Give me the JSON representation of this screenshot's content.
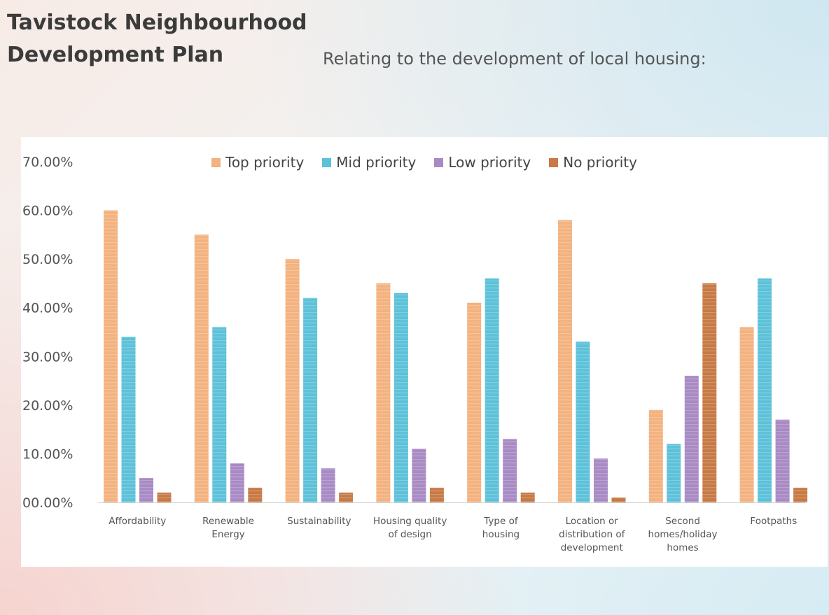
{
  "page": {
    "title_line1": "Tavistock Neighbourhood",
    "title_line2": "Development Plan",
    "subtitle": "Relating to the development of local housing:"
  },
  "colors": {
    "top": "#f3b27f",
    "mid": "#5dc1d9",
    "low": "#a88ac4",
    "none": "#c77a45"
  },
  "chart_data": {
    "type": "bar",
    "categories": [
      [
        "Affordability"
      ],
      [
        "Renewable",
        "Energy"
      ],
      [
        "Sustainability"
      ],
      [
        "Housing quality",
        "of design"
      ],
      [
        "Type of",
        "housing"
      ],
      [
        "Location or",
        "distribution of",
        "development"
      ],
      [
        "Second",
        "homes/holiday",
        "homes"
      ],
      [
        "Footpaths"
      ]
    ],
    "series": [
      {
        "name": "Top priority",
        "key": "top",
        "values": [
          60,
          55,
          50,
          45,
          41,
          58,
          19,
          36
        ]
      },
      {
        "name": "Mid priority",
        "key": "mid",
        "values": [
          34,
          36,
          42,
          43,
          46,
          33,
          12,
          46
        ]
      },
      {
        "name": "Low priority",
        "key": "low",
        "values": [
          5,
          8,
          7,
          11,
          13,
          9,
          26,
          17
        ]
      },
      {
        "name": "No priority",
        "key": "none",
        "values": [
          2,
          3,
          2,
          3,
          2,
          1,
          45,
          3
        ]
      }
    ],
    "y_ticks": [
      "00.00%",
      "10.00%",
      "20.00%",
      "30.00%",
      "40.00%",
      "50.00%",
      "60.00%",
      "70.00%"
    ],
    "ylim": [
      0,
      70
    ],
    "legend_position": "top",
    "grid": false
  }
}
